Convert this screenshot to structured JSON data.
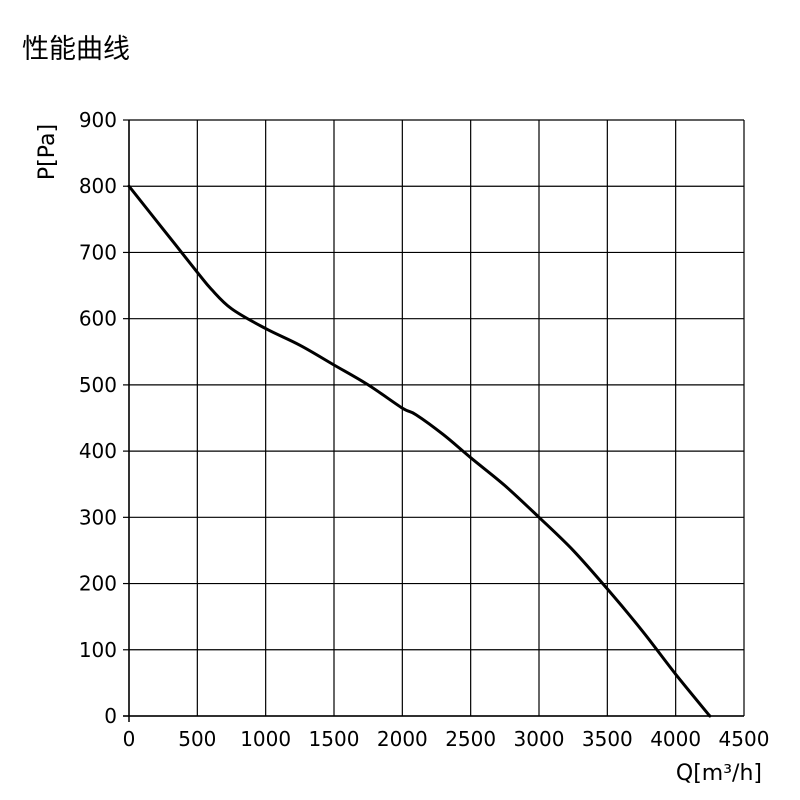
{
  "chart_data": {
    "type": "line",
    "title": "性能曲线",
    "xlabel": "Q[m³/h]",
    "ylabel": "P[Pa]",
    "xlim": [
      0,
      4500
    ],
    "ylim": [
      0,
      900
    ],
    "x_ticks": [
      0,
      500,
      1000,
      1500,
      2000,
      2500,
      3000,
      3500,
      4000,
      4500
    ],
    "y_ticks": [
      0,
      100,
      200,
      300,
      400,
      500,
      600,
      700,
      800,
      900
    ],
    "grid": true,
    "line_color": "#000000",
    "series": [
      {
        "points": [
          [
            0,
            800
          ],
          [
            250,
            735
          ],
          [
            500,
            670
          ],
          [
            600,
            645
          ],
          [
            750,
            615
          ],
          [
            1000,
            585
          ],
          [
            1250,
            560
          ],
          [
            1500,
            530
          ],
          [
            1750,
            500
          ],
          [
            2000,
            465
          ],
          [
            2100,
            455
          ],
          [
            2300,
            425
          ],
          [
            2500,
            390
          ],
          [
            2750,
            348
          ],
          [
            3000,
            300
          ],
          [
            3250,
            250
          ],
          [
            3500,
            192
          ],
          [
            3750,
            130
          ],
          [
            4000,
            63
          ],
          [
            4250,
            0
          ]
        ]
      }
    ]
  }
}
